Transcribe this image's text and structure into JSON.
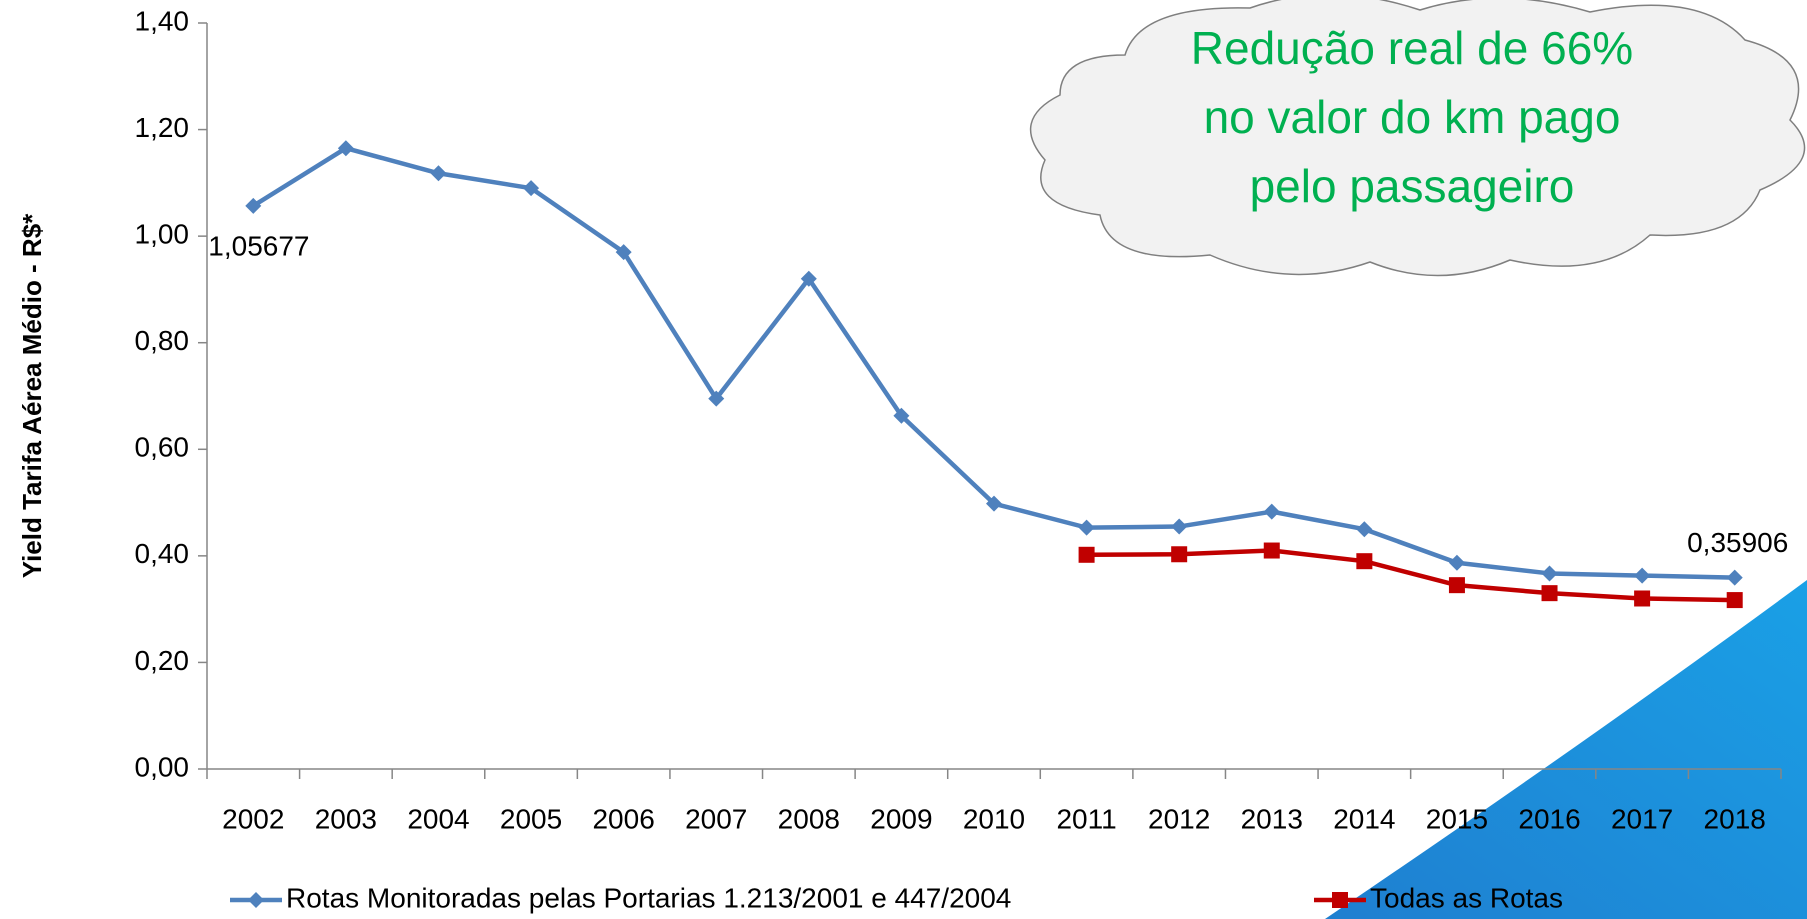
{
  "chart_data": {
    "type": "line",
    "y_axis_label": "Yield Tarifa Aérea Médio -  R$*",
    "annotation": [
      "Redução real de 66%",
      "no valor do km pago",
      "pelo passageiro"
    ],
    "categories": [
      "2002",
      "2003",
      "2004",
      "2005",
      "2006",
      "2007",
      "2008",
      "2009",
      "2010",
      "2011",
      "2012",
      "2013",
      "2014",
      "2015",
      "2016",
      "2017",
      "2018"
    ],
    "series": [
      {
        "name": "Rotas Monitoradas pelas Portarias 1.213/2001 e 447/2004",
        "color": "#4f81bd",
        "marker": "diamond",
        "values": [
          1.05677,
          1.165,
          1.118,
          1.09,
          0.97,
          0.695,
          0.92,
          0.663,
          0.498,
          0.453,
          0.455,
          0.483,
          0.45,
          0.387,
          0.367,
          0.363,
          0.35906
        ],
        "value_labels": [
          "1,05677",
          null,
          null,
          null,
          null,
          null,
          null,
          null,
          null,
          null,
          null,
          null,
          null,
          null,
          null,
          null,
          "0,35906"
        ]
      },
      {
        "name": "Todas as Rotas",
        "color": "#c00000",
        "marker": "square",
        "values": [
          null,
          null,
          null,
          null,
          null,
          null,
          null,
          null,
          null,
          0.402,
          0.403,
          0.41,
          0.39,
          0.345,
          0.33,
          0.32,
          0.317
        ]
      }
    ],
    "ylim": [
      0,
      1.4
    ],
    "yticks": [
      {
        "value": 0,
        "label": "0,00"
      },
      {
        "value": 0.2,
        "label": "0,20"
      },
      {
        "value": 0.4,
        "label": "0,40"
      },
      {
        "value": 0.6,
        "label": "0,60"
      },
      {
        "value": 0.8,
        "label": "0,80"
      },
      {
        "value": 1.0,
        "label": "1,00"
      },
      {
        "value": 1.2,
        "label": "1,20"
      },
      {
        "value": 1.4,
        "label": "1,40"
      }
    ],
    "grid": false,
    "legend": "bottom"
  }
}
